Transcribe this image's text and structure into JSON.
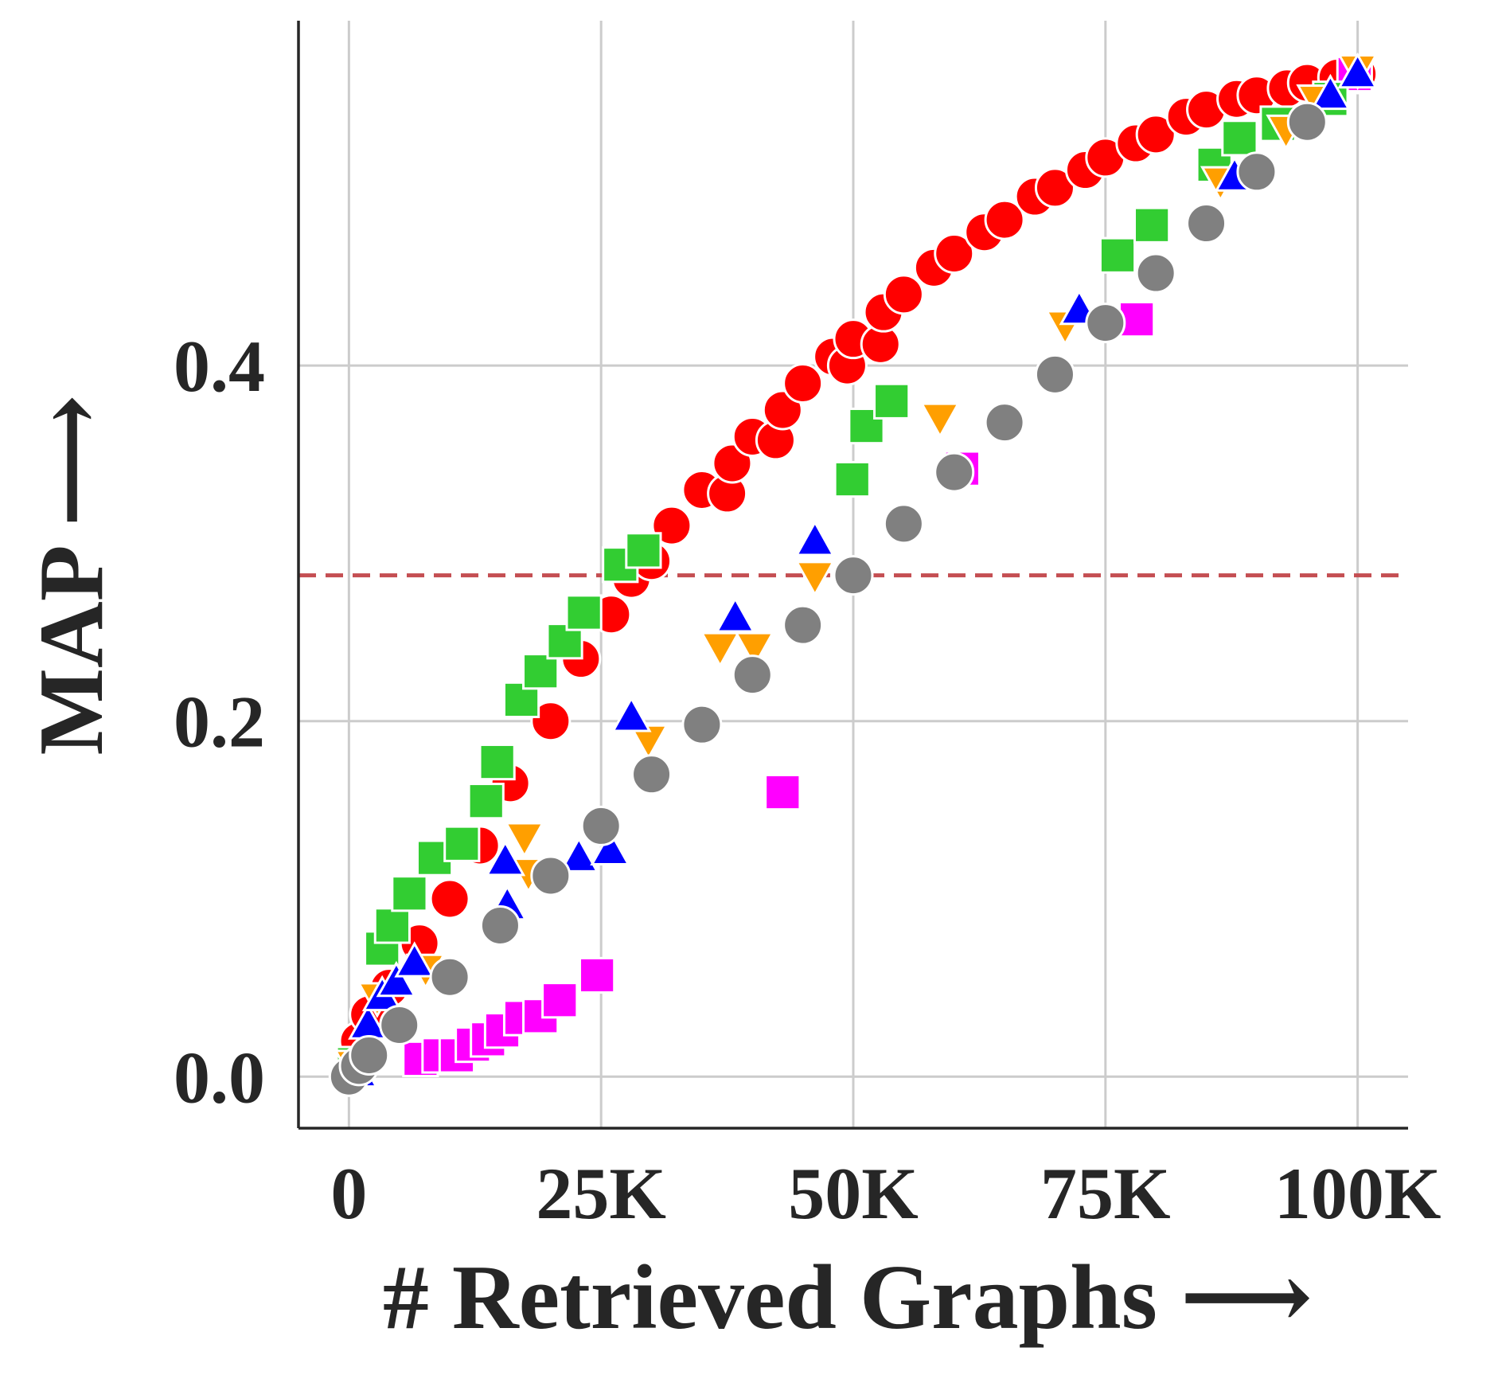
{
  "chart_data": {
    "type": "scatter",
    "x_label": "# Retrieved Graphs ⟶",
    "y_label": "MAP ⟶",
    "xlim": [
      -5000,
      105000
    ],
    "ylim": [
      -0.029,
      0.594
    ],
    "xticks": [
      {
        "value": 0,
        "label": "0"
      },
      {
        "value": 25000,
        "label": "25K"
      },
      {
        "value": 50000,
        "label": "50K"
      },
      {
        "value": 75000,
        "label": "75K"
      },
      {
        "value": 100000,
        "label": "100K"
      }
    ],
    "yticks": [
      {
        "value": 0,
        "label": "0.0"
      },
      0.2,
      0.4
    ],
    "grid": true,
    "reference_line": {
      "y": 0.282,
      "color": "#c44e52",
      "dash": true
    },
    "series": [
      {
        "color": "#ff0000",
        "marker": "circle",
        "x": [
          0,
          1000,
          2000,
          4000,
          7000,
          10000,
          13000,
          16000,
          20000,
          23000,
          26000,
          28000,
          30000,
          32000,
          35000,
          37500,
          38000,
          40000,
          42300,
          43000,
          45000,
          48000,
          49400,
          50000,
          52700,
          53000,
          55000,
          58000,
          60000,
          63000,
          65000,
          68000,
          70000,
          73000,
          75000,
          78000,
          80000,
          83000,
          85000,
          88000,
          90000,
          93000,
          95000,
          98000,
          100000
        ],
        "y": [
          0,
          0.02,
          0.035,
          0.05,
          0.075,
          0.1,
          0.13,
          0.165,
          0.2,
          0.235,
          0.26,
          0.28,
          0.29,
          0.31,
          0.33,
          0.328,
          0.345,
          0.36,
          0.358,
          0.375,
          0.39,
          0.405,
          0.4,
          0.415,
          0.412,
          0.43,
          0.44,
          0.455,
          0.463,
          0.475,
          0.482,
          0.495,
          0.5,
          0.51,
          0.517,
          0.525,
          0.53,
          0.54,
          0.544,
          0.55,
          0.552,
          0.556,
          0.559,
          0.562,
          0.564
        ]
      },
      {
        "color": "#ff00ff",
        "marker": "square",
        "x": [
          7100,
          9000,
          10700,
          12300,
          13800,
          15200,
          17100,
          19000,
          20900,
          24600,
          43000,
          60800,
          78100,
          99700
        ],
        "y": [
          0.01,
          0.012,
          0.012,
          0.018,
          0.021,
          0.026,
          0.033,
          0.034,
          0.043,
          0.057,
          0.16,
          0.342,
          0.426,
          0.564
        ]
      },
      {
        "color": "#32cd32",
        "marker": "square",
        "x": [
          500,
          3300,
          4300,
          6000,
          8500,
          11200,
          13600,
          14700,
          17100,
          19000,
          21400,
          23300,
          26900,
          29200,
          49900,
          51300,
          53800,
          76200,
          79600,
          85800,
          88300,
          92100,
          97300
        ],
        "y": [
          0.007,
          0.072,
          0.085,
          0.103,
          0.123,
          0.131,
          0.155,
          0.177,
          0.212,
          0.228,
          0.245,
          0.261,
          0.288,
          0.296,
          0.336,
          0.366,
          0.38,
          0.462,
          0.479,
          0.513,
          0.528,
          0.536,
          0.55
        ]
      },
      {
        "color": "#ff9f00",
        "marker": "triangle-down",
        "x": [
          500,
          2800,
          7600,
          17400,
          17800,
          29700,
          36800,
          40200,
          46200,
          58600,
          71000,
          86400,
          92900,
          95900,
          100000
        ],
        "y": [
          0.007,
          0.045,
          0.061,
          0.135,
          0.115,
          0.19,
          0.242,
          0.242,
          0.282,
          0.371,
          0.423,
          0.504,
          0.533,
          0.55,
          0.567
        ]
      },
      {
        "color": "#0000ff",
        "marker": "triangle-up",
        "x": [
          900,
          1900,
          3300,
          4700,
          6500,
          15700,
          15500,
          22800,
          25900,
          28000,
          38300,
          46200,
          72400,
          87800,
          97300,
          100000
        ],
        "y": [
          0.002,
          0.029,
          0.045,
          0.053,
          0.064,
          0.096,
          0.121,
          0.123,
          0.127,
          0.202,
          0.258,
          0.301,
          0.431,
          0.506,
          0.552,
          0.564
        ]
      },
      {
        "color": "#808080",
        "marker": "circle",
        "x": [
          0,
          1000,
          2000,
          5000,
          10000,
          15000,
          20000,
          25000,
          30000,
          35000,
          40000,
          45000,
          50000,
          55000,
          60000,
          65000,
          70000,
          75000,
          80000,
          85000,
          90000,
          95000
        ],
        "y": [
          0,
          0.006,
          0.012,
          0.029,
          0.056,
          0.085,
          0.113,
          0.141,
          0.17,
          0.198,
          0.226,
          0.254,
          0.282,
          0.311,
          0.34,
          0.368,
          0.395,
          0.424,
          0.452,
          0.48,
          0.509,
          0.537
        ]
      }
    ]
  }
}
